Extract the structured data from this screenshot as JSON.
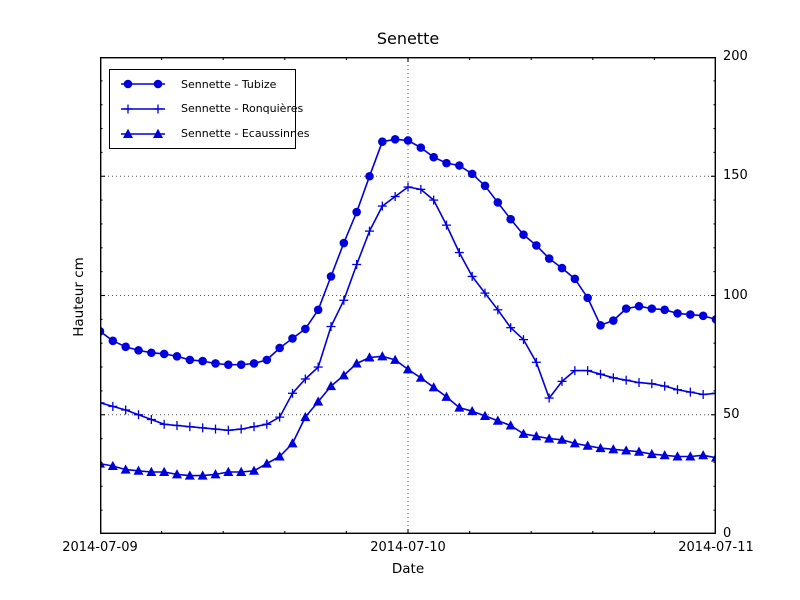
{
  "chart_data": {
    "type": "line",
    "title": "Senette",
    "line_color": "#0000dd",
    "background": "#ffffff",
    "axes": {
      "x": {
        "label": "Date",
        "tick_labels": [
          "2014-07-09",
          "2014-07-10",
          "2014-07-11"
        ],
        "span_hours": 48,
        "major_hours": [
          0,
          24,
          48
        ],
        "minor_hours": [
          4.8,
          9.6,
          14.4,
          19.2,
          28.8,
          33.6,
          38.4,
          43.2
        ]
      },
      "y": {
        "label": "Hauteur cm",
        "tick_labels": [
          "200",
          "150",
          "100",
          "50",
          "0"
        ],
        "major_values": [
          0,
          50,
          100,
          150,
          200
        ],
        "minor_step": 10,
        "lim": [
          0,
          200
        ],
        "tick_label_side": "right"
      }
    },
    "grid": {
      "style": "dotted",
      "color": "#555555",
      "y_values": [
        50,
        100,
        150
      ],
      "x_hours": [
        24
      ]
    },
    "legend_position": "upper-left",
    "series": [
      {
        "name": "Sennette - Tubize",
        "marker": "circle",
        "x_unit": "hours since 2014-07-09 00:00",
        "values": [
          85,
          81,
          78.5,
          77,
          76,
          75.5,
          74.5,
          73,
          72.5,
          71.5,
          71,
          71,
          71.5,
          73,
          78,
          82,
          86,
          94,
          108,
          122,
          135,
          150,
          164.5,
          165.5,
          165,
          162,
          158,
          155.5,
          154.5,
          151,
          146,
          139,
          132,
          125.5,
          121,
          115.5,
          111.5,
          107,
          99,
          87.5,
          89.5,
          94.5,
          95.5,
          94.5,
          94,
          92.5,
          92,
          91.5,
          90
        ]
      },
      {
        "name": "Sennette - Ronquières",
        "marker": "plus",
        "x_unit": "hours since 2014-07-09 00:00",
        "values": [
          55,
          53.5,
          52,
          50,
          48,
          46,
          45.5,
          45,
          44.5,
          44,
          43.5,
          44,
          45,
          46,
          49,
          59,
          65,
          70,
          87,
          98,
          113,
          127,
          137.5,
          141.5,
          145.5,
          144.5,
          140,
          129.5,
          118,
          108,
          101,
          94,
          86.5,
          81.5,
          72,
          57,
          64,
          68.5,
          68.5,
          67,
          65.5,
          64.5,
          63.5,
          63,
          62,
          60.5,
          59.5,
          58.5,
          59
        ]
      },
      {
        "name": "Sennette - Ecaussinnes",
        "marker": "triangle",
        "x_unit": "hours since 2014-07-09 00:00",
        "values": [
          29.5,
          28.5,
          27,
          26.5,
          26,
          26,
          25,
          24.5,
          24.5,
          25,
          26,
          26,
          26.5,
          29.5,
          32.5,
          38,
          49,
          55.5,
          62,
          66.5,
          71.5,
          74,
          74.5,
          73,
          69,
          65.5,
          61.5,
          57.5,
          53,
          51.5,
          49.5,
          47.5,
          45.5,
          42,
          41,
          40,
          39.5,
          38,
          37,
          36,
          35.5,
          35,
          34.5,
          33.5,
          33,
          32.5,
          32.5,
          33,
          32
        ]
      }
    ]
  }
}
